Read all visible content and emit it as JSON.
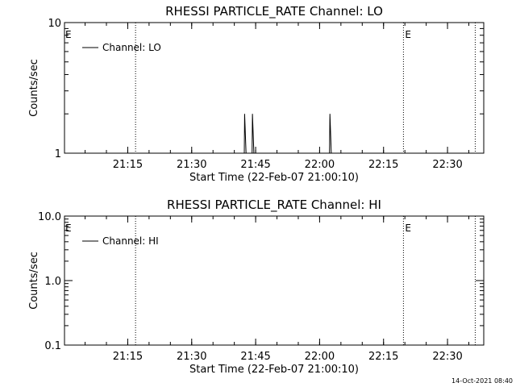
{
  "chart_data": [
    {
      "type": "line",
      "title": "RHESSI PARTICLE_RATE Channel: LO",
      "xlabel": "Start Time (22-Feb-07 21:00:10)",
      "ylabel": "Counts/sec",
      "yscale": "log",
      "xlim": [
        "21:00:10",
        "22:38:30"
      ],
      "ylim": [
        1,
        10
      ],
      "xticks": [
        "21:15",
        "21:30",
        "21:45",
        "22:00",
        "22:15",
        "22:30"
      ],
      "yticks": [
        "1",
        "10"
      ],
      "legend": {
        "placement": "top-left",
        "entries": [
          "Channel: LO"
        ]
      },
      "markers": [
        {
          "time": "21:16:50",
          "label": ""
        },
        {
          "time": "22:19:40",
          "label": "E"
        },
        {
          "time": "22:36:30",
          "label": ""
        }
      ],
      "edge_label": "E",
      "series": [
        {
          "name": "Channel: LO",
          "points": [
            [
              "21:42:20",
              1
            ],
            [
              "21:42:25",
              2
            ],
            [
              "21:42:45",
              1
            ],
            [
              "21:44:10",
              1
            ],
            [
              "21:44:15",
              2
            ],
            [
              "21:44:35",
              1
            ],
            [
              "22:02:20",
              1
            ],
            [
              "22:02:25",
              2
            ],
            [
              "22:02:45",
              1
            ]
          ]
        }
      ]
    },
    {
      "type": "line",
      "title": "RHESSI PARTICLE_RATE Channel: HI",
      "xlabel": "Start Time (22-Feb-07 21:00:10)",
      "ylabel": "Counts/sec",
      "yscale": "log",
      "xlim": [
        "21:00:10",
        "22:38:30"
      ],
      "ylim": [
        0.1,
        10
      ],
      "xticks": [
        "21:15",
        "21:30",
        "21:45",
        "22:00",
        "22:15",
        "22:30"
      ],
      "yticks": [
        "0.1",
        "1.0",
        "10.0"
      ],
      "legend": {
        "placement": "top-left",
        "entries": [
          "Channel: HI"
        ]
      },
      "markers": [
        {
          "time": "21:16:50",
          "label": ""
        },
        {
          "time": "22:19:40",
          "label": "E"
        },
        {
          "time": "22:36:30",
          "label": ""
        }
      ],
      "edge_label": "E",
      "series": [
        {
          "name": "Channel: HI",
          "points": []
        }
      ]
    }
  ],
  "footer": {
    "timestamp": "14-Oct-2021 08:40"
  }
}
